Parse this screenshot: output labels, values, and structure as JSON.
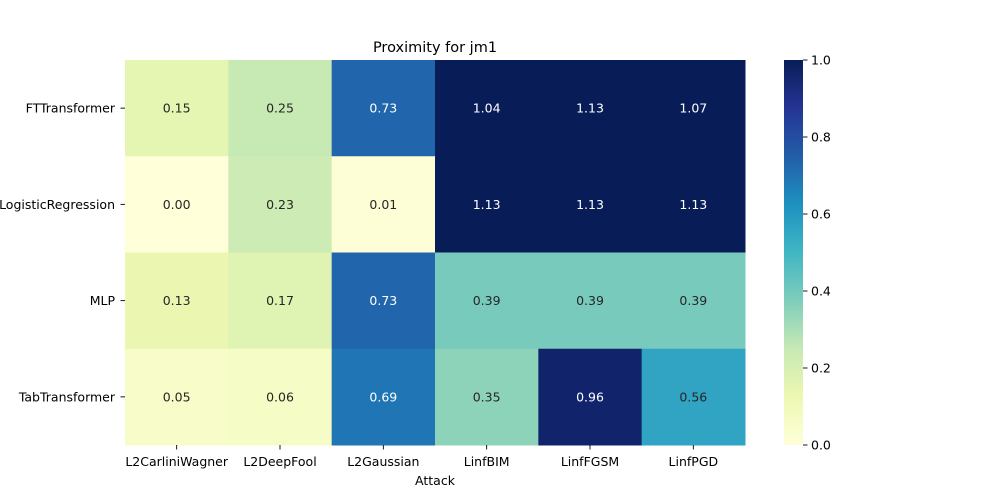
{
  "chart_data": {
    "type": "heatmap",
    "title": "Proximity for jm1",
    "xlabel": "Attack",
    "ylabel": "",
    "x_categories": [
      "L2CarliniWagner",
      "L2DeepFool",
      "L2Gaussian",
      "LinfBIM",
      "LinfFGSM",
      "LinfPGD"
    ],
    "y_categories": [
      "FTTransformer",
      "LogisticRegression",
      "MLP",
      "TabTransformer"
    ],
    "values": [
      [
        0.15,
        0.25,
        0.73,
        1.04,
        1.13,
        1.07
      ],
      [
        0.0,
        0.23,
        0.01,
        1.13,
        1.13,
        1.13
      ],
      [
        0.13,
        0.17,
        0.73,
        0.39,
        0.39,
        0.39
      ],
      [
        0.05,
        0.06,
        0.69,
        0.35,
        0.96,
        0.56
      ]
    ],
    "value_labels": [
      [
        "0.15",
        "0.25",
        "0.73",
        "1.04",
        "1.13",
        "1.07"
      ],
      [
        "0.00",
        "0.23",
        "0.01",
        "1.13",
        "1.13",
        "1.13"
      ],
      [
        "0.13",
        "0.17",
        "0.73",
        "0.39",
        "0.39",
        "0.39"
      ],
      [
        "0.05",
        "0.06",
        "0.69",
        "0.35",
        "0.96",
        "0.56"
      ]
    ],
    "colorbar": {
      "range": [
        0.0,
        1.0
      ],
      "ticks": [
        "0.0",
        "0.2",
        "0.4",
        "0.6",
        "0.8",
        "1.0"
      ],
      "colormap": "YlGnBu"
    }
  }
}
